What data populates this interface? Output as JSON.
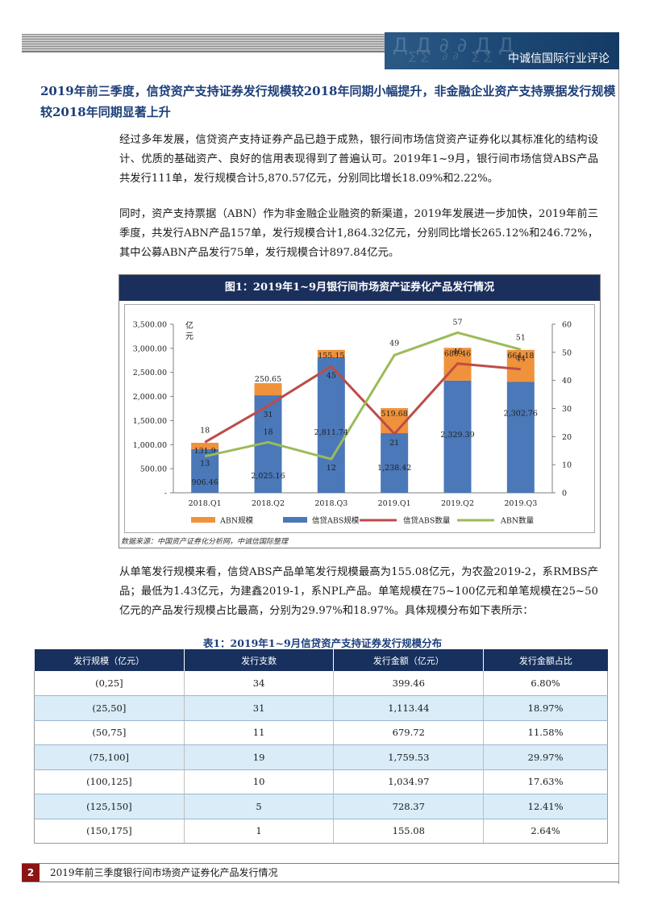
{
  "header": {
    "org_name": "中诚信国际行业评论"
  },
  "section": {
    "heading": "2019年前三季度，信贷资产支持证券发行规模较2018年同期小幅提升，非金融企业资产支持票据发行规模较2018年同期显著上升"
  },
  "paragraphs": {
    "p1": "经过多年发展，信贷资产支持证券产品已趋于成熟，银行间市场信贷资产证券化以其标准化的结构设计、优质的基础资产、良好的信用表现得到了普遍认可。2019年1~9月，银行间市场信贷ABS产品共发行111单，发行规模合计5,870.57亿元，分别同比增长18.09%和2.22%。",
    "p2": "同时，资产支持票据（ABN）作为非金融企业融资的新渠道，2019年发展进一步加快，2019年前三季度，共发行ABN产品157单，发行规模合计1,864.32亿元，分别同比增长265.12%和246.72%，其中公募ABN产品发行75单，发行规模合计897.84亿元。",
    "p3": "从单笔发行规模来看，信贷ABS产品单笔发行规模最高为155.08亿元，为农盈2019-2，系RMBS产品；最低为1.43亿元，为建鑫2019-1，系NPL产品。单笔规模在75~100亿元和单笔规模在25~50亿元的产品发行规模占比最高，分别为29.97%和18.97%。具体规模分布如下表所示："
  },
  "figure": {
    "title": "图1：2019年1~9月银行间市场资产证券化产品发行情况",
    "source": "数据来源：中国资产证券化分析网，中诚信国际整理"
  },
  "chart_data": {
    "type": "bar",
    "stacked": true,
    "categories": [
      "2018.Q1",
      "2018.Q2",
      "2018.Q3",
      "2019.Q1",
      "2019.Q2",
      "2019.Q3"
    ],
    "series": [
      {
        "name": "信贷ABS规模",
        "kind": "bar",
        "axis": "left",
        "color": "#4a78b8",
        "values": [
          906.46,
          2025.16,
          2811.74,
          1238.42,
          2329.39,
          2302.76
        ]
      },
      {
        "name": "ABN规模",
        "kind": "bar",
        "axis": "left",
        "color": "#f0923c",
        "values": [
          131.9,
          250.65,
          155.15,
          519.68,
          680.46,
          664.18
        ]
      },
      {
        "name": "信贷ABS数量",
        "kind": "line",
        "axis": "right",
        "color": "#be4b48",
        "values": [
          18,
          31,
          45,
          21,
          46,
          44
        ]
      },
      {
        "name": "ABN数量",
        "kind": "line",
        "axis": "right",
        "color": "#9bbb59",
        "values": [
          13,
          18,
          12,
          49,
          57,
          51
        ]
      }
    ],
    "left_axis": {
      "unit_label": "亿元",
      "ylim": [
        0,
        3500
      ],
      "ticks": [
        "-",
        "500.00",
        "1,000.00",
        "1,500.00",
        "2,000.00",
        "2,500.00",
        "3,000.00",
        "3,500.00"
      ]
    },
    "right_axis": {
      "ylim": [
        0,
        60
      ],
      "ticks": [
        "0",
        "10",
        "20",
        "30",
        "40",
        "50",
        "60"
      ]
    },
    "bar_labels": {
      "abs": [
        "906.46",
        "2,025.16",
        "2,811.74",
        "1,238.42",
        "2,329.39",
        "2,302.76"
      ],
      "abn": [
        "131.9",
        "250.65",
        "155.15",
        "519.68",
        "680.46",
        "664.18"
      ]
    },
    "legend": {
      "position": "bottom",
      "items": [
        "ABN规模",
        "信贷ABS规模",
        "信贷ABS数量",
        "ABN数量"
      ]
    },
    "grid": false
  },
  "table": {
    "title": "表1：2019年1~9月信贷资产支持证券发行规模分布",
    "headers": [
      "发行规模（亿元）",
      "发行支数",
      "发行金额（亿元）",
      "发行金额占比"
    ],
    "rows": [
      [
        "(0,25]",
        "34",
        "399.46",
        "6.80%"
      ],
      [
        "(25,50]",
        "31",
        "1,113.44",
        "18.97%"
      ],
      [
        "(50,75]",
        "11",
        "679.72",
        "11.58%"
      ],
      [
        "(75,100]",
        "19",
        "1,759.53",
        "29.97%"
      ],
      [
        "(100,125]",
        "10",
        "1,034.97",
        "17.63%"
      ],
      [
        "(125,150]",
        "5",
        "728.37",
        "12.41%"
      ],
      [
        "(150,175]",
        "1",
        "155.08",
        "2.64%"
      ]
    ]
  },
  "footer": {
    "page_number": "2",
    "doc_title": "2019年前三季度银行间市场资产证券化产品发行情况"
  }
}
